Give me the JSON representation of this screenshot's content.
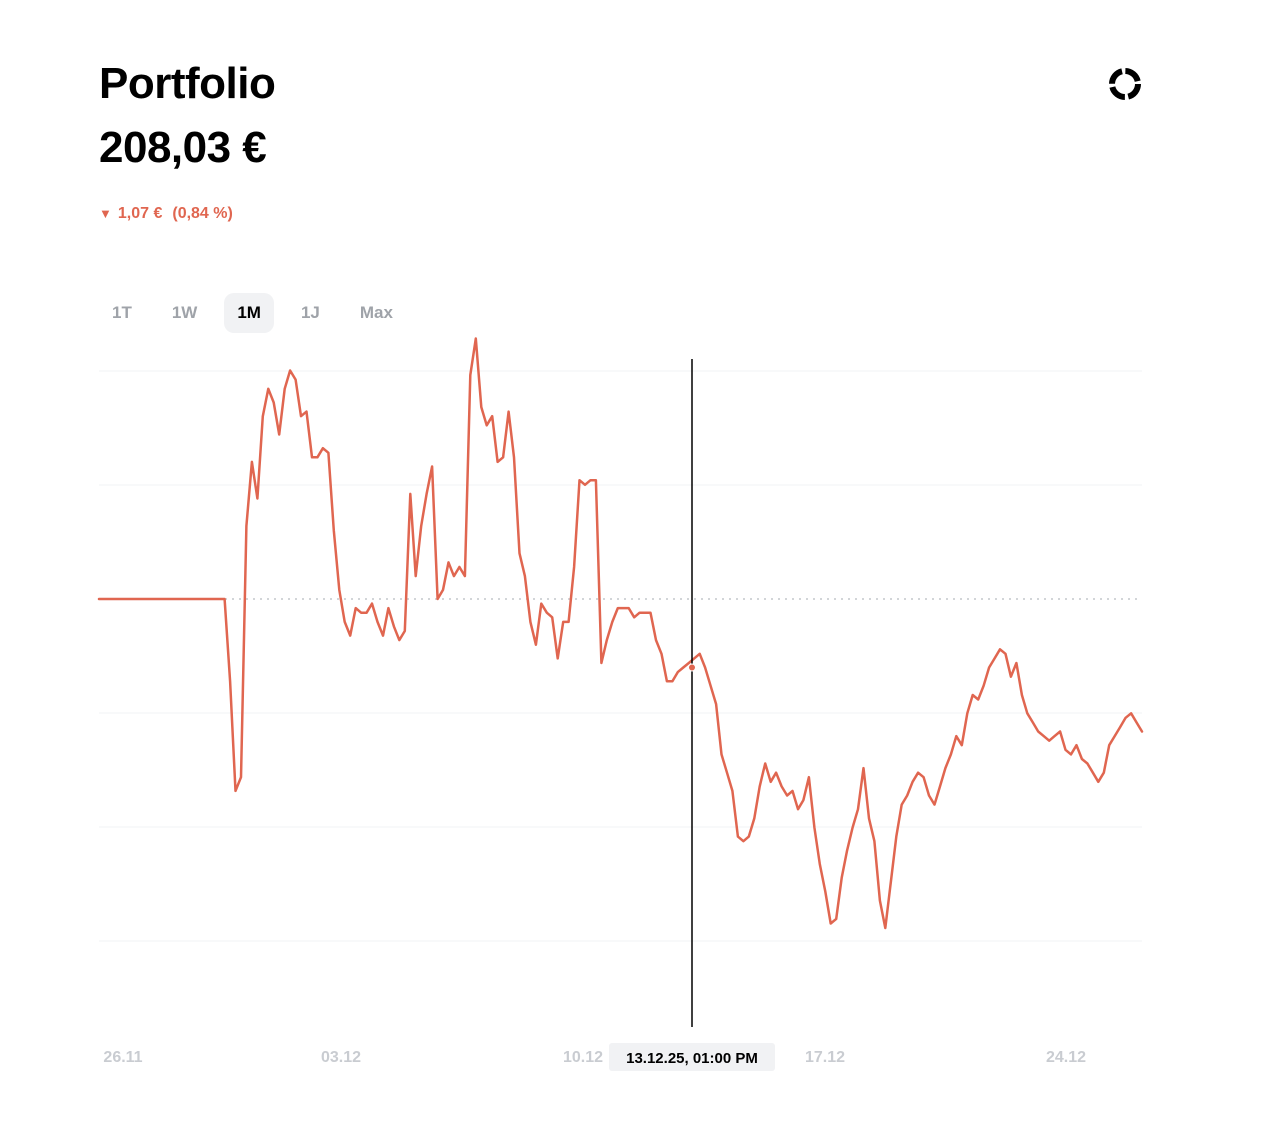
{
  "header": {
    "title": "Portfolio",
    "value": "208,03 €",
    "change_arrow": "▼",
    "change_amount": "1,07 €",
    "change_percent": "(0,84 %)",
    "change_color": "#e06650",
    "icon": "donut-chart-icon"
  },
  "tabs": [
    {
      "label": "1T",
      "active": false
    },
    {
      "label": "1W",
      "active": false
    },
    {
      "label": "1M",
      "active": true
    },
    {
      "label": "1J",
      "active": false
    },
    {
      "label": "Max",
      "active": false
    }
  ],
  "chart_data": {
    "type": "line",
    "series_color": "#e06650",
    "baseline": "dotted",
    "grid": true,
    "x_tick_labels": [
      "26.11",
      "03.12",
      "10.12",
      "17.12",
      "24.12"
    ],
    "hover": {
      "label": "13.12.25, 01:00 PM"
    },
    "series": [
      {
        "values": [
          0,
          0,
          0,
          0,
          0,
          0,
          0,
          0,
          0,
          0,
          0,
          0,
          0,
          0,
          0,
          0,
          0,
          0,
          0,
          0,
          0,
          0,
          0,
          0,
          -1.8,
          -4.2,
          -3.9,
          1.6,
          3.0,
          2.2,
          4.0,
          4.6,
          4.3,
          3.6,
          4.6,
          5.0,
          4.8,
          4.0,
          4.1,
          3.1,
          3.1,
          3.3,
          3.2,
          1.5,
          0.2,
          -0.5,
          -0.8,
          -0.2,
          -0.3,
          -0.3,
          -0.1,
          -0.5,
          -0.8,
          -0.2,
          -0.6,
          -0.9,
          -0.7,
          2.3,
          0.5,
          1.6,
          2.3,
          2.9,
          0.0,
          0.2,
          0.8,
          0.5,
          0.7,
          0.5,
          4.9,
          5.7,
          4.2,
          3.8,
          4.0,
          3.0,
          3.1,
          4.1,
          3.1,
          1.0,
          0.5,
          -0.5,
          -1.0,
          -0.1,
          -0.3,
          -0.4,
          -1.3,
          -0.5,
          -0.5,
          0.7,
          2.6,
          2.5,
          2.6,
          2.6,
          -1.4,
          -0.9,
          -0.5,
          -0.2,
          -0.2,
          -0.2,
          -0.4,
          -0.3,
          -0.3,
          -0.3,
          -0.9,
          -1.2,
          -1.8,
          -1.8,
          -1.6,
          -1.5,
          -1.4,
          -1.3,
          -1.2,
          -1.5,
          -1.9,
          -2.3,
          -3.4,
          -3.8,
          -4.2,
          -5.2,
          -5.3,
          -5.2,
          -4.8,
          -4.1,
          -3.6,
          -4.0,
          -3.8,
          -4.1,
          -4.3,
          -4.2,
          -4.6,
          -4.4,
          -3.9,
          -5.0,
          -5.8,
          -6.4,
          -7.1,
          -7.0,
          -6.1,
          -5.5,
          -5.0,
          -4.6,
          -3.7,
          -4.8,
          -5.3,
          -6.6,
          -7.2,
          -6.2,
          -5.2,
          -4.5,
          -4.3,
          -4.0,
          -3.8,
          -3.9,
          -4.3,
          -4.5,
          -4.1,
          -3.7,
          -3.4,
          -3.0,
          -3.2,
          -2.5,
          -2.1,
          -2.2,
          -1.9,
          -1.5,
          -1.3,
          -1.1,
          -1.2,
          -1.7,
          -1.4,
          -2.1,
          -2.5,
          -2.7,
          -2.9,
          -3.0,
          -3.1,
          -3.0,
          -2.9,
          -3.3,
          -3.4,
          -3.2,
          -3.5,
          -3.6,
          -3.8,
          -4.0,
          -3.8,
          -3.2,
          -3.0,
          -2.8,
          -2.6,
          -2.5,
          -2.7,
          -2.9
        ]
      }
    ]
  }
}
